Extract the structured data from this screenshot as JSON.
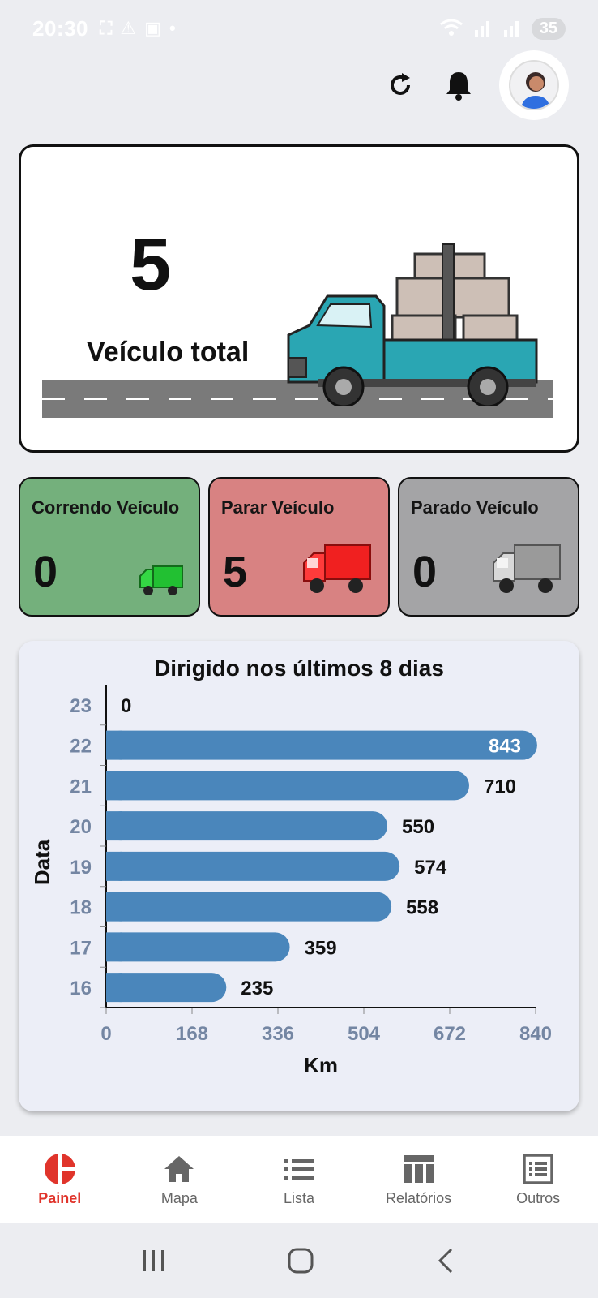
{
  "status_bar": {
    "time": "20:30",
    "battery": "35"
  },
  "hero": {
    "total_value": "5",
    "total_label": "Veículo total"
  },
  "stats": [
    {
      "label": "Correndo Veículo",
      "value": "0",
      "color": "#74b07c"
    },
    {
      "label": "Parar Veículo",
      "value": "5",
      "color": "#d88282"
    },
    {
      "label": "Parado Veículo",
      "value": "0",
      "color": "#a4a4a6"
    }
  ],
  "chart_data": {
    "type": "bar",
    "orientation": "horizontal",
    "title": "Dirigido nos últimos 8 dias",
    "xlabel": "Km",
    "ylabel": "Data",
    "categories": [
      "23",
      "22",
      "21",
      "20",
      "19",
      "18",
      "17",
      "16"
    ],
    "values": [
      0,
      843,
      710,
      550,
      574,
      558,
      359,
      235
    ],
    "xticks": [
      "0",
      "168",
      "336",
      "504",
      "672",
      "840"
    ],
    "xlim": [
      0,
      840
    ],
    "bar_color": "#4a86bb"
  },
  "nav": {
    "items": [
      {
        "label": "Painel",
        "icon": "dashboard-icon",
        "active": true
      },
      {
        "label": "Mapa",
        "icon": "home-icon",
        "active": false
      },
      {
        "label": "Lista",
        "icon": "list-icon",
        "active": false
      },
      {
        "label": "Relatórios",
        "icon": "reports-icon",
        "active": false
      },
      {
        "label": "Outros",
        "icon": "others-icon",
        "active": false
      }
    ]
  }
}
